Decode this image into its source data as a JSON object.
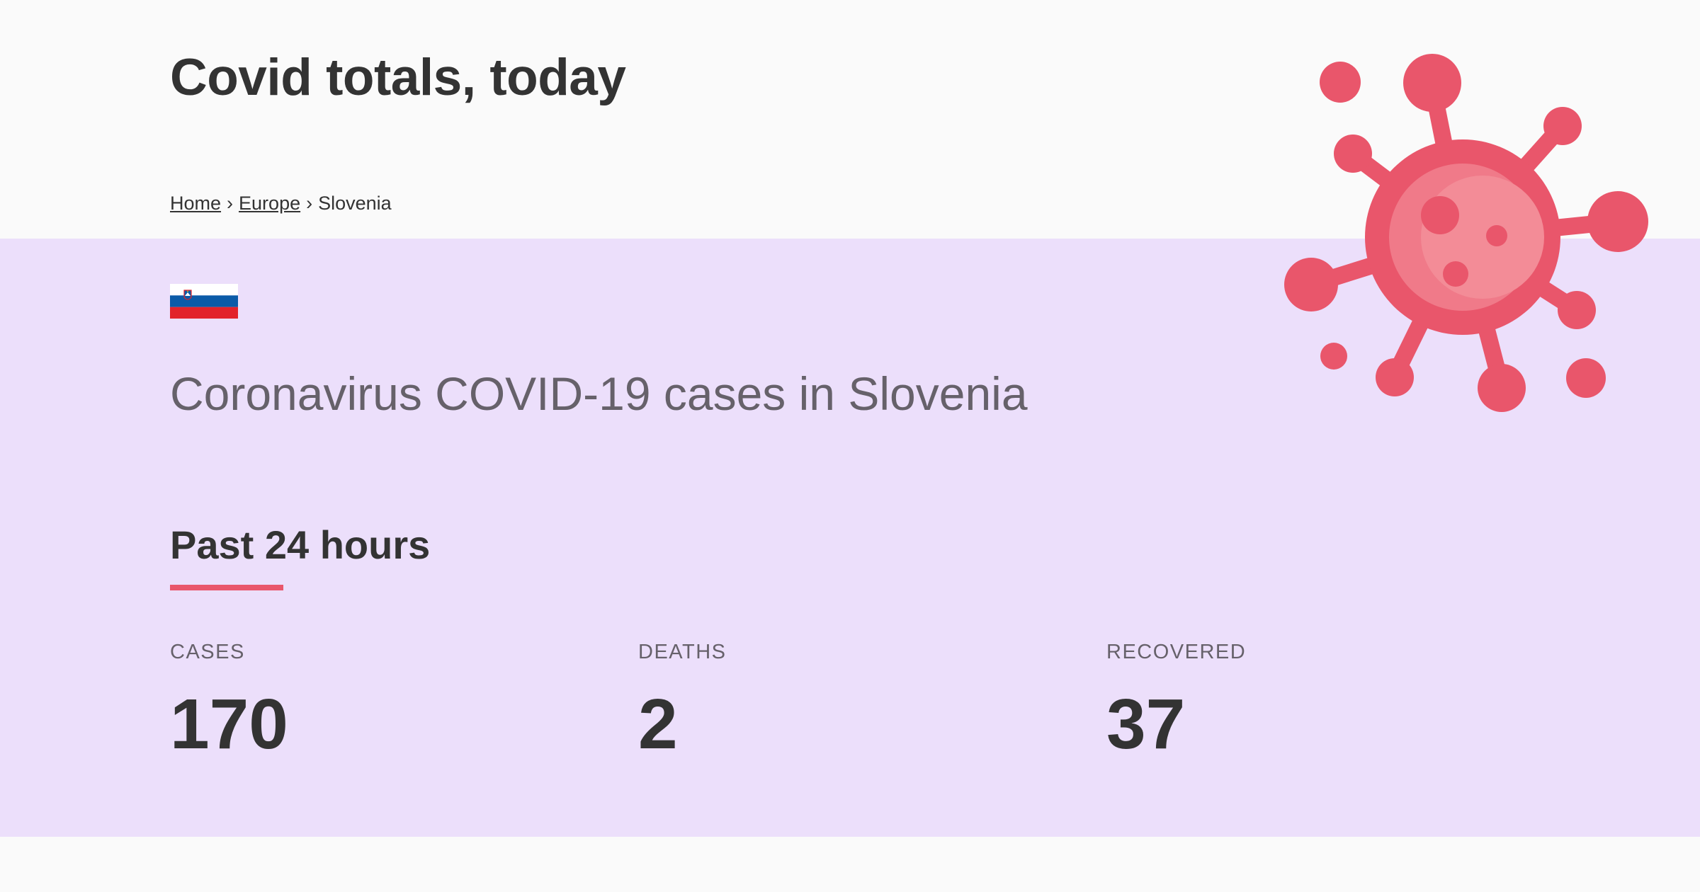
{
  "header": {
    "title": "Covid totals, today"
  },
  "breadcrumb": {
    "home": "Home",
    "region": "Europe",
    "current": "Slovenia",
    "separator": "›"
  },
  "country": {
    "heading": "Coronavirus COVID-19 cases in Slovenia",
    "flag_icon": "slovenia-flag-icon"
  },
  "summary": {
    "title": "Past 24 hours",
    "stats": [
      {
        "label": "CASES",
        "value": "170"
      },
      {
        "label": "DEATHS",
        "value": "2"
      },
      {
        "label": "RECOVERED",
        "value": "37"
      }
    ]
  },
  "decor": {
    "virus_icon": "virus-icon"
  },
  "colors": {
    "accent": "#e9566b",
    "band_background": "#ecdffb",
    "page_background": "#fafafa",
    "text": "#333333",
    "muted_text": "#66616a"
  }
}
